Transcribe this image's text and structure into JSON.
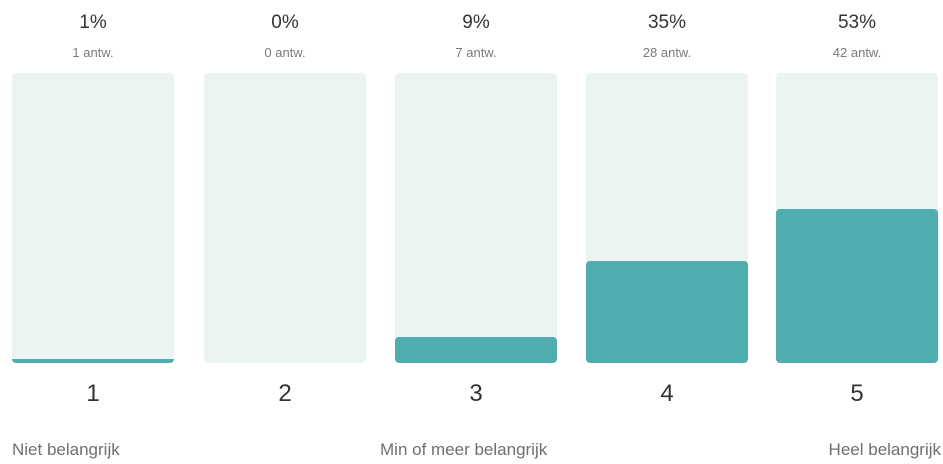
{
  "chart_data": {
    "type": "bar",
    "categories": [
      "1",
      "2",
      "3",
      "4",
      "5"
    ],
    "values": [
      1,
      0,
      9,
      35,
      53
    ],
    "value_unit": "%",
    "percent_labels": [
      "1%",
      "0%",
      "9%",
      "35%",
      "53%"
    ],
    "counts": [
      1,
      0,
      7,
      28,
      42
    ],
    "count_labels": [
      "1 antw.",
      "0 antw.",
      "7 antw.",
      "28 antw.",
      "42 antw."
    ],
    "ylim": [
      0,
      100
    ],
    "scale_labels": {
      "low": "Niet belangrijk",
      "mid": "Min of meer belangrijk",
      "high": "Heel belangrijk"
    },
    "colors": {
      "fill": "#4fadae",
      "track": "#ebf4f3"
    },
    "grid": false,
    "legend": "none"
  }
}
